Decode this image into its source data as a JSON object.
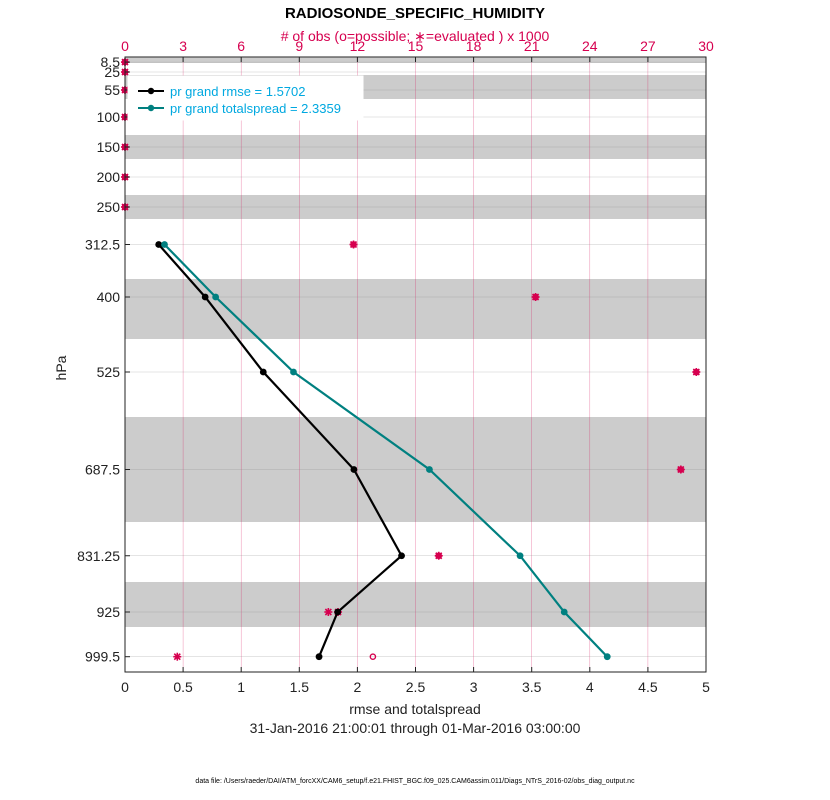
{
  "chart_data": {
    "type": "line",
    "title": "RADIOSONDE_SPECIFIC_HUMIDITY",
    "top_axis": {
      "label": "# of obs (o=possible; ∗=evaluated ) x 1000",
      "range": [
        0,
        30
      ],
      "ticks": [
        "0",
        "3",
        "6",
        "9",
        "12",
        "15",
        "18",
        "21",
        "24",
        "27",
        "30"
      ],
      "color": "#d6004f"
    },
    "xlabel": "rmse and totalspread",
    "xlim": [
      0,
      5
    ],
    "xticks": [
      "0",
      "0.5",
      "1",
      "1.5",
      "2",
      "2.5",
      "3",
      "3.5",
      "4",
      "4.5",
      "5"
    ],
    "ylabel": "hPa",
    "y_scale": "pressure (reversed)",
    "ylim": [
      1025,
      0
    ],
    "y_ticks": [
      "8.5",
      "25",
      "55",
      "100",
      "150",
      "200",
      "250",
      "312.5",
      "400",
      "525",
      "687.5",
      "831.25",
      "925",
      "999.5"
    ],
    "y_tick_values": [
      8.5,
      25,
      55,
      100,
      150,
      200,
      250,
      312.5,
      400,
      525,
      687.5,
      831.25,
      925,
      999.5
    ],
    "shaded_bands": [
      [
        1,
        10
      ],
      [
        30,
        70
      ],
      [
        130,
        170
      ],
      [
        230,
        270
      ],
      [
        370,
        470
      ],
      [
        600,
        775
      ],
      [
        875,
        950
      ]
    ],
    "levels": [
      312.5,
      400,
      525,
      687.5,
      831.25,
      925,
      999.5
    ],
    "series": [
      {
        "name": "pr grand rmse = 1.5702",
        "color": "#000000",
        "values": [
          0.29,
          0.69,
          1.19,
          1.97,
          2.38,
          1.83,
          1.67
        ]
      },
      {
        "name": "pr grand totalspread = 2.3359",
        "color": "#008080",
        "values": [
          0.34,
          0.78,
          1.45,
          2.62,
          3.4,
          3.78,
          4.15
        ]
      }
    ],
    "obs_counts": {
      "levels": [
        8.5,
        25,
        55,
        100,
        150,
        200,
        250,
        312.5,
        400,
        525,
        687.5,
        831.25,
        925,
        999.5
      ],
      "possible": [
        0,
        0,
        0,
        0,
        0,
        0,
        0,
        11.8,
        21.2,
        29.5,
        28.7,
        16.2,
        11.0,
        12.8
      ],
      "evaluated": [
        0,
        0,
        0,
        0,
        0,
        0,
        0,
        11.8,
        21.2,
        29.5,
        28.7,
        16.2,
        11.0,
        2.7
      ],
      "evaluated_extra": [
        {
          "level": 925,
          "value": 10.5
        }
      ]
    },
    "grid": true,
    "legend_position": "top-left",
    "time_range": "31-Jan-2016 21:00:01 through 01-Mar-2016 03:00:00",
    "footer": "data file: /Users/raeder/DAI/ATM_forcXX/CAM6_setup/f.e21.FHIST_BGC.f09_025.CAM6assim.011/Diags_NTrS_2016-02/obs_diag_output.nc"
  }
}
